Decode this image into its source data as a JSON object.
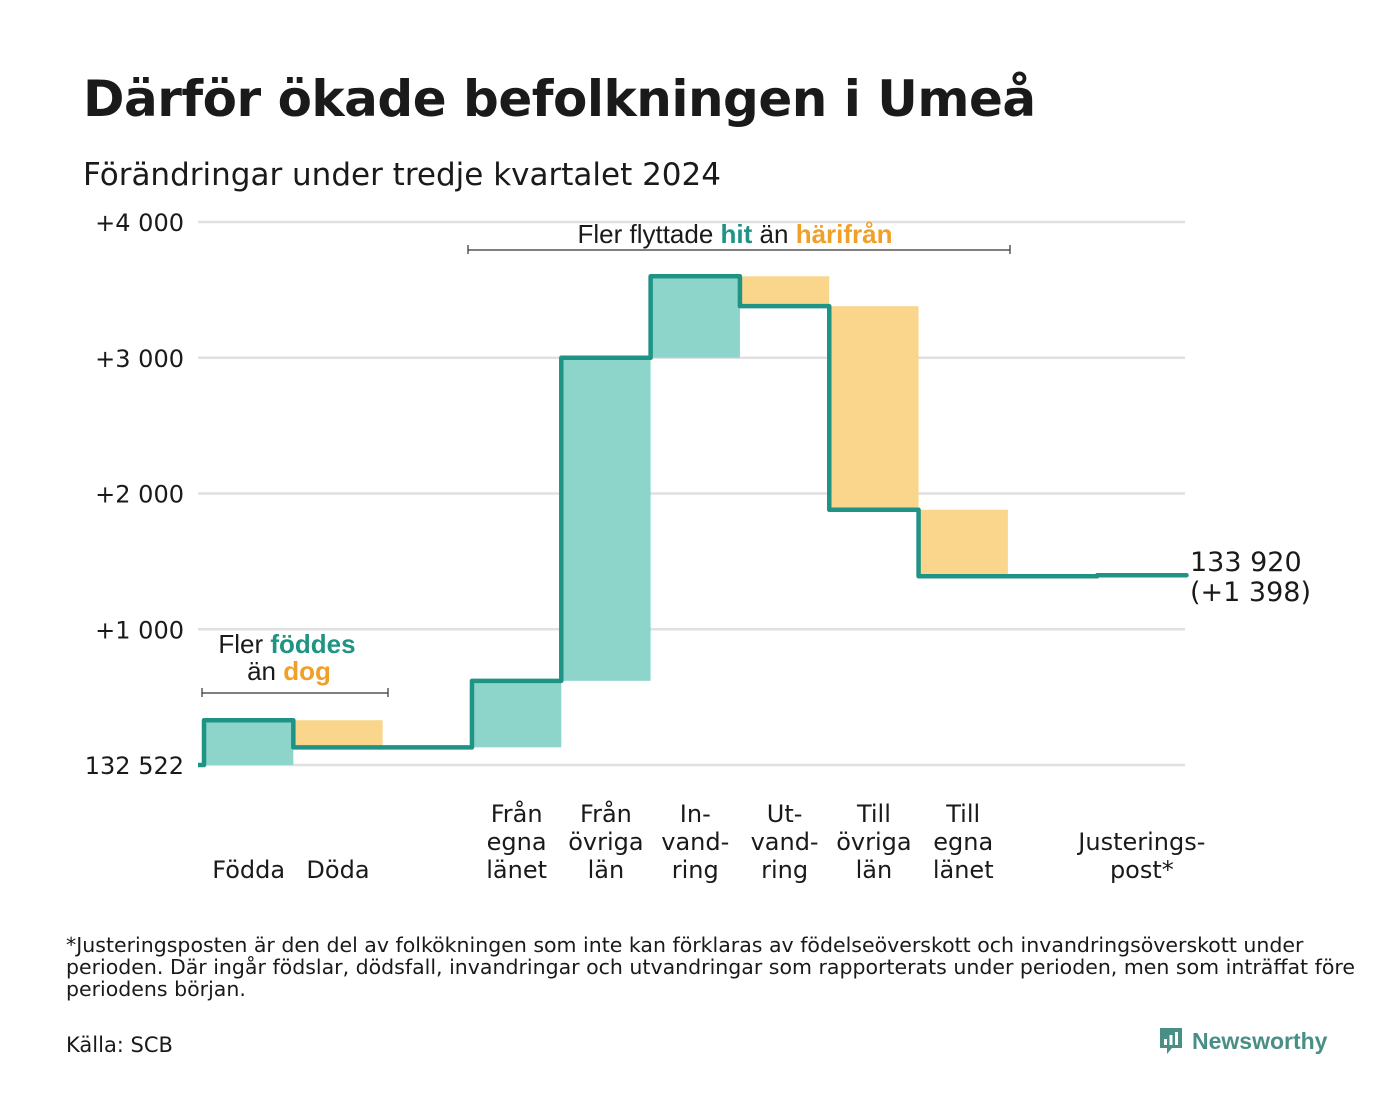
{
  "title": "Därför ökade befolkningen i Umeå",
  "subtitle": "Förändringar under tredje kvartalet 2024",
  "footnote": "*Justeringsposten är den del av folkökningen som inte kan förklaras av födelseöverskott och invandringsöverskott under perioden. Där ingår födslar, dödsfall, invandringar och utvandringar som rapporterats under perioden, men som inträffat före periodens början.",
  "source": "Källa: SCB",
  "brand": "Newsworthy",
  "colors": {
    "increase": "#8dd5cb",
    "decrease": "#fad68d",
    "line": "#1f9384",
    "grid": "#e0e0e0",
    "highlight_increase": "#1f9384",
    "highlight_decrease": "#f0a028"
  },
  "annotations": {
    "births": {
      "line1_plain": "Fler ",
      "line1_highlight": "föddes",
      "line2_plain": "än ",
      "line2_highlight": "dog"
    },
    "migration": {
      "plain1": "Fler flyttade ",
      "highlight1": "hit",
      "plain2": " än ",
      "highlight2": "härifrån"
    }
  },
  "end_label": {
    "total": "133 920",
    "change": "(+1 398)"
  },
  "chart_data": {
    "type": "waterfall",
    "baseline": 132522,
    "y_tick_labels": [
      "132 522",
      "+1 000",
      "+2 000",
      "+3 000",
      "+4 000"
    ],
    "y_tick_values": [
      0,
      1000,
      2000,
      3000,
      4000
    ],
    "ylim": [
      0,
      4000
    ],
    "grid": true,
    "steps": [
      {
        "label": [
          "",
          "",
          "Födda"
        ],
        "start": 0,
        "end": 330,
        "kind": "increase"
      },
      {
        "label": [
          "",
          "",
          "Döda"
        ],
        "start": 330,
        "end": 130,
        "kind": "decrease"
      },
      {
        "label": [
          "",
          "",
          ""
        ],
        "start": 130,
        "end": 130,
        "kind": "none"
      },
      {
        "label": [
          "Från",
          "egna",
          "länet"
        ],
        "start": 130,
        "end": 620,
        "kind": "increase"
      },
      {
        "label": [
          "Från",
          "övriga",
          "län"
        ],
        "start": 620,
        "end": 3000,
        "kind": "increase"
      },
      {
        "label": [
          "In-",
          "vand-",
          "ring"
        ],
        "start": 3000,
        "end": 3600,
        "kind": "increase"
      },
      {
        "label": [
          "Ut-",
          "vand-",
          "ring"
        ],
        "start": 3600,
        "end": 3380,
        "kind": "decrease"
      },
      {
        "label": [
          "Till",
          "övriga",
          "län"
        ],
        "start": 3380,
        "end": 1880,
        "kind": "decrease"
      },
      {
        "label": [
          "Till",
          "egna",
          "länet"
        ],
        "start": 1880,
        "end": 1390,
        "kind": "decrease"
      },
      {
        "label": [
          "",
          "",
          ""
        ],
        "start": 1390,
        "end": 1390,
        "kind": "none"
      },
      {
        "label": [
          "Justerings-",
          "post*",
          ""
        ],
        "start": 1390,
        "end": 1398,
        "kind": "none"
      }
    ],
    "final_change": 1398
  }
}
